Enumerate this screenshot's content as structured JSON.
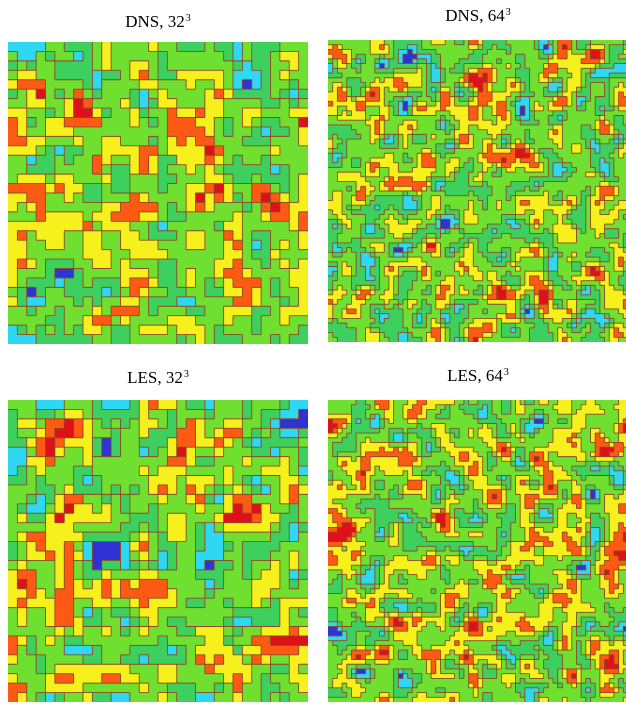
{
  "chart_data": [
    {
      "type": "contour",
      "title": "DNS, 32",
      "title_exponent": "3",
      "grid_resolution": 32,
      "levels": 7,
      "seed": 11,
      "colormap": [
        "#2f33d3",
        "#2fd8f2",
        "#3ed05e",
        "#6fe030",
        "#f6f01c",
        "#ff5a14",
        "#e0101b"
      ],
      "contour_line_color": "#8a4a22"
    },
    {
      "type": "contour",
      "title": "DNS, 64",
      "title_exponent": "3",
      "grid_resolution": 64,
      "levels": 7,
      "seed": 23,
      "colormap": [
        "#2f33d3",
        "#2fd8f2",
        "#3ed05e",
        "#6fe030",
        "#f6f01c",
        "#ff5a14",
        "#e0101b"
      ],
      "contour_line_color": "#8a4a22"
    },
    {
      "type": "contour",
      "title": "LES, 32",
      "title_exponent": "3",
      "grid_resolution": 32,
      "levels": 7,
      "seed": 37,
      "colormap": [
        "#2f33d3",
        "#2fd8f2",
        "#3ed05e",
        "#6fe030",
        "#f6f01c",
        "#ff5a14",
        "#e0101b"
      ],
      "contour_line_color": "#8a4a22"
    },
    {
      "type": "contour",
      "title": "LES, 64",
      "title_exponent": "3",
      "grid_resolution": 64,
      "levels": 7,
      "seed": 51,
      "colormap": [
        "#2f33d3",
        "#2fd8f2",
        "#3ed05e",
        "#6fe030",
        "#f6f01c",
        "#ff5a14",
        "#e0101b"
      ],
      "contour_line_color": "#8a4a22"
    }
  ]
}
